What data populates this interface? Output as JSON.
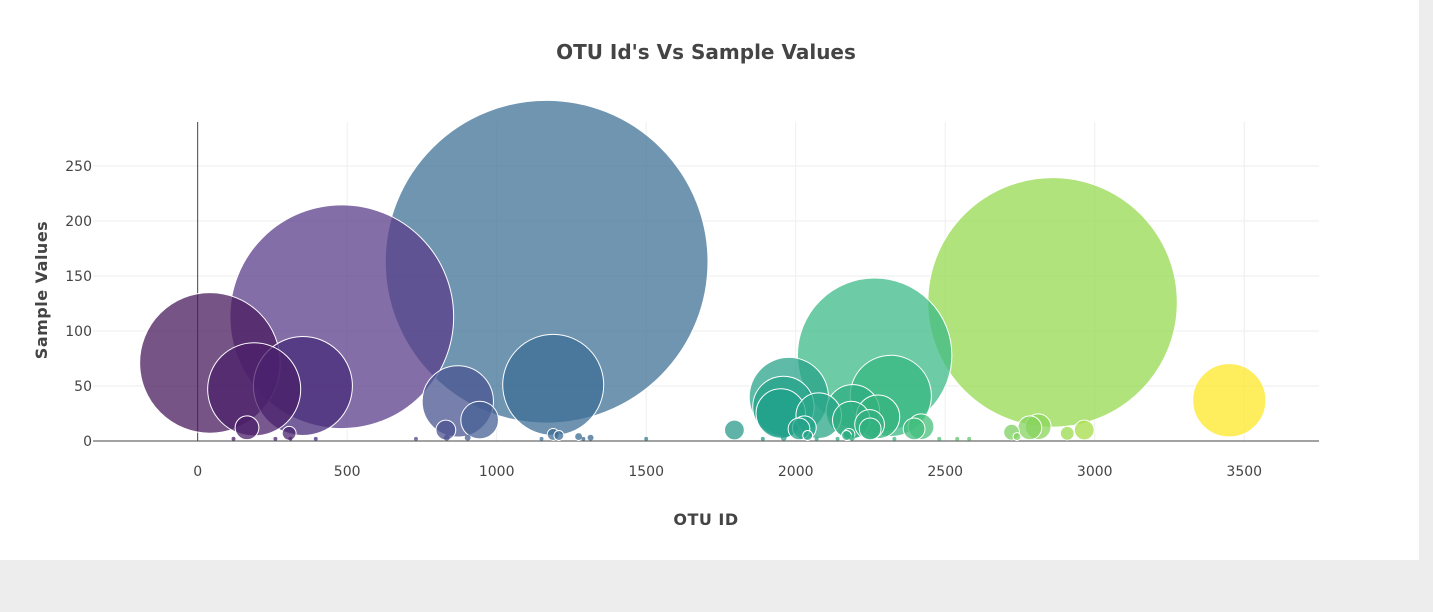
{
  "chart_data": {
    "type": "scatter",
    "title": "OTU Id's Vs Sample Values",
    "xlabel": "OTU ID",
    "ylabel": "Sample Values",
    "xlim": [
      -350,
      3750
    ],
    "ylim": [
      0,
      290
    ],
    "xticks": [
      0,
      500,
      1000,
      1500,
      2000,
      2500,
      3000,
      3500
    ],
    "yticks": [
      0,
      50,
      100,
      150,
      200,
      250
    ],
    "grid": true,
    "legend": "none",
    "marker_size_encodes": "sample value",
    "color_scale": "Viridis by OTU ID",
    "points": [
      {
        "x": 1167,
        "y": 163,
        "color": "#3f7196"
      },
      {
        "x": 2859,
        "y": 126,
        "color": "#95d94f"
      },
      {
        "x": 482,
        "y": 113,
        "color": "#5b3d8a"
      },
      {
        "x": 2264,
        "y": 78,
        "color": "#3cba87"
      },
      {
        "x": 41,
        "y": 71,
        "color": "#4a1b5e"
      },
      {
        "x": 1189,
        "y": 51,
        "color": "#3d6e95"
      },
      {
        "x": 352,
        "y": 50,
        "color": "#472b7a"
      },
      {
        "x": 189,
        "y": 47,
        "color": "#4b206a"
      },
      {
        "x": 2318,
        "y": 41,
        "color": "#37b881"
      },
      {
        "x": 1977,
        "y": 40,
        "color": "#29a38a"
      },
      {
        "x": 3450,
        "y": 37,
        "color": "#fde725"
      },
      {
        "x": 870,
        "y": 36,
        "color": "#4a5692"
      },
      {
        "x": 1959,
        "y": 31,
        "color": "#23a28a"
      },
      {
        "x": 2191,
        "y": 27,
        "color": "#2fae82"
      },
      {
        "x": 1950,
        "y": 25,
        "color": "#1fa08b"
      },
      {
        "x": 2077,
        "y": 23,
        "color": "#2aa788"
      },
      {
        "x": 2275,
        "y": 22,
        "color": "#35b47e"
      },
      {
        "x": 2186,
        "y": 19,
        "color": "#30ae82"
      },
      {
        "x": 943,
        "y": 19,
        "color": "#476095"
      },
      {
        "x": 2247,
        "y": 15,
        "color": "#34b280"
      },
      {
        "x": 2419,
        "y": 13,
        "color": "#45c079"
      },
      {
        "x": 2811,
        "y": 13,
        "color": "#8ad559"
      },
      {
        "x": 2783,
        "y": 12,
        "color": "#86d35d"
      },
      {
        "x": 165,
        "y": 12,
        "color": "#4b1e68"
      },
      {
        "x": 2029,
        "y": 12,
        "color": "#26a48a"
      },
      {
        "x": 2011,
        "y": 11,
        "color": "#25a38a"
      },
      {
        "x": 2396,
        "y": 11,
        "color": "#40bd7d"
      },
      {
        "x": 2249,
        "y": 11,
        "color": "#33b280"
      },
      {
        "x": 1795,
        "y": 10,
        "color": "#2b9a8a"
      },
      {
        "x": 830,
        "y": 10,
        "color": "#4c5190"
      },
      {
        "x": 2965,
        "y": 10,
        "color": "#a4dd48"
      },
      {
        "x": 2722,
        "y": 8,
        "color": "#7ecf62"
      },
      {
        "x": 306,
        "y": 7,
        "color": "#4b246f"
      },
      {
        "x": 2908,
        "y": 7,
        "color": "#9adb4c"
      },
      {
        "x": 1189,
        "y": 6,
        "color": "#3d6e95"
      },
      {
        "x": 2178,
        "y": 6,
        "color": "#30ad83"
      },
      {
        "x": 1208,
        "y": 5,
        "color": "#3c6c94"
      },
      {
        "x": 2040,
        "y": 5,
        "color": "#28a589"
      },
      {
        "x": 2170,
        "y": 5,
        "color": "#2fac83"
      },
      {
        "x": 1274,
        "y": 4,
        "color": "#3a6b93"
      },
      {
        "x": 2740,
        "y": 4,
        "color": "#82d05f"
      },
      {
        "x": 1314,
        "y": 3,
        "color": "#396992"
      },
      {
        "x": 903,
        "y": 3,
        "color": "#495b93"
      },
      {
        "x": 833,
        "y": 3,
        "color": "#4c5190"
      },
      {
        "x": 1960,
        "y": 3,
        "color": "#23a28a"
      },
      {
        "x": 2188,
        "y": 3,
        "color": "#30ae82"
      },
      {
        "x": 120,
        "y": 2,
        "color": "#4c1c66"
      },
      {
        "x": 260,
        "y": 2,
        "color": "#4b226d"
      },
      {
        "x": 310,
        "y": 2,
        "color": "#4b246f"
      },
      {
        "x": 395,
        "y": 2,
        "color": "#4a2e7c"
      },
      {
        "x": 730,
        "y": 2,
        "color": "#4e4a8c"
      },
      {
        "x": 1150,
        "y": 2,
        "color": "#3f7196"
      },
      {
        "x": 1290,
        "y": 2,
        "color": "#3a6a93"
      },
      {
        "x": 1500,
        "y": 2,
        "color": "#34808e"
      },
      {
        "x": 1890,
        "y": 2,
        "color": "#279a8b"
      },
      {
        "x": 2070,
        "y": 2,
        "color": "#2aa688"
      },
      {
        "x": 2140,
        "y": 2,
        "color": "#2eab84"
      },
      {
        "x": 2330,
        "y": 2,
        "color": "#38b97f"
      },
      {
        "x": 2480,
        "y": 2,
        "color": "#4fc475"
      },
      {
        "x": 2540,
        "y": 2,
        "color": "#59c86e"
      },
      {
        "x": 2580,
        "y": 2,
        "color": "#60ca6b"
      }
    ]
  }
}
